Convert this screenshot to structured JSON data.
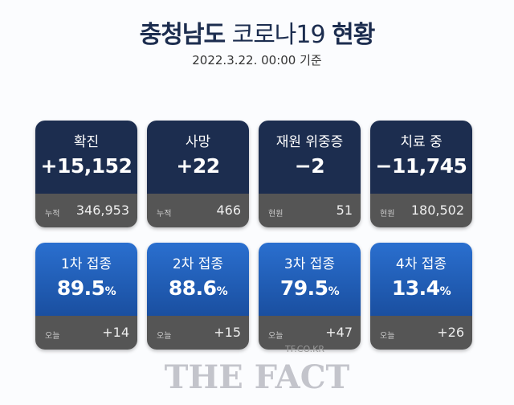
{
  "header": {
    "title_bold_1": "충청남도",
    "title_light": "코로나19",
    "title_bold_2": "현황",
    "date": "2022.3.22. 00:00 기준"
  },
  "status_cards": [
    {
      "label": "확진",
      "value": "+15,152",
      "sub_label": "누적",
      "sub_value": "346,953"
    },
    {
      "label": "사망",
      "value": "+22",
      "sub_label": "누적",
      "sub_value": "466"
    },
    {
      "label": "재원 위중증",
      "value": "−2",
      "sub_label": "현원",
      "sub_value": "51"
    },
    {
      "label": "치료 중",
      "value": "−11,745",
      "sub_label": "현원",
      "sub_value": "180,502"
    }
  ],
  "vaccine_cards": [
    {
      "label": "1차 접종",
      "value": "89.5",
      "unit": "%",
      "sub_label": "오늘",
      "sub_value": "+14"
    },
    {
      "label": "2차 접종",
      "value": "88.6",
      "unit": "%",
      "sub_label": "오늘",
      "sub_value": "+15"
    },
    {
      "label": "3차 접종",
      "value": "79.5",
      "unit": "%",
      "sub_label": "오늘",
      "sub_value": "+47"
    },
    {
      "label": "4차 접종",
      "value": "13.4",
      "unit": "%",
      "sub_label": "오늘",
      "sub_value": "+26"
    }
  ],
  "watermark": {
    "site": "TF.CO.KR",
    "brand": "THE FACT"
  }
}
